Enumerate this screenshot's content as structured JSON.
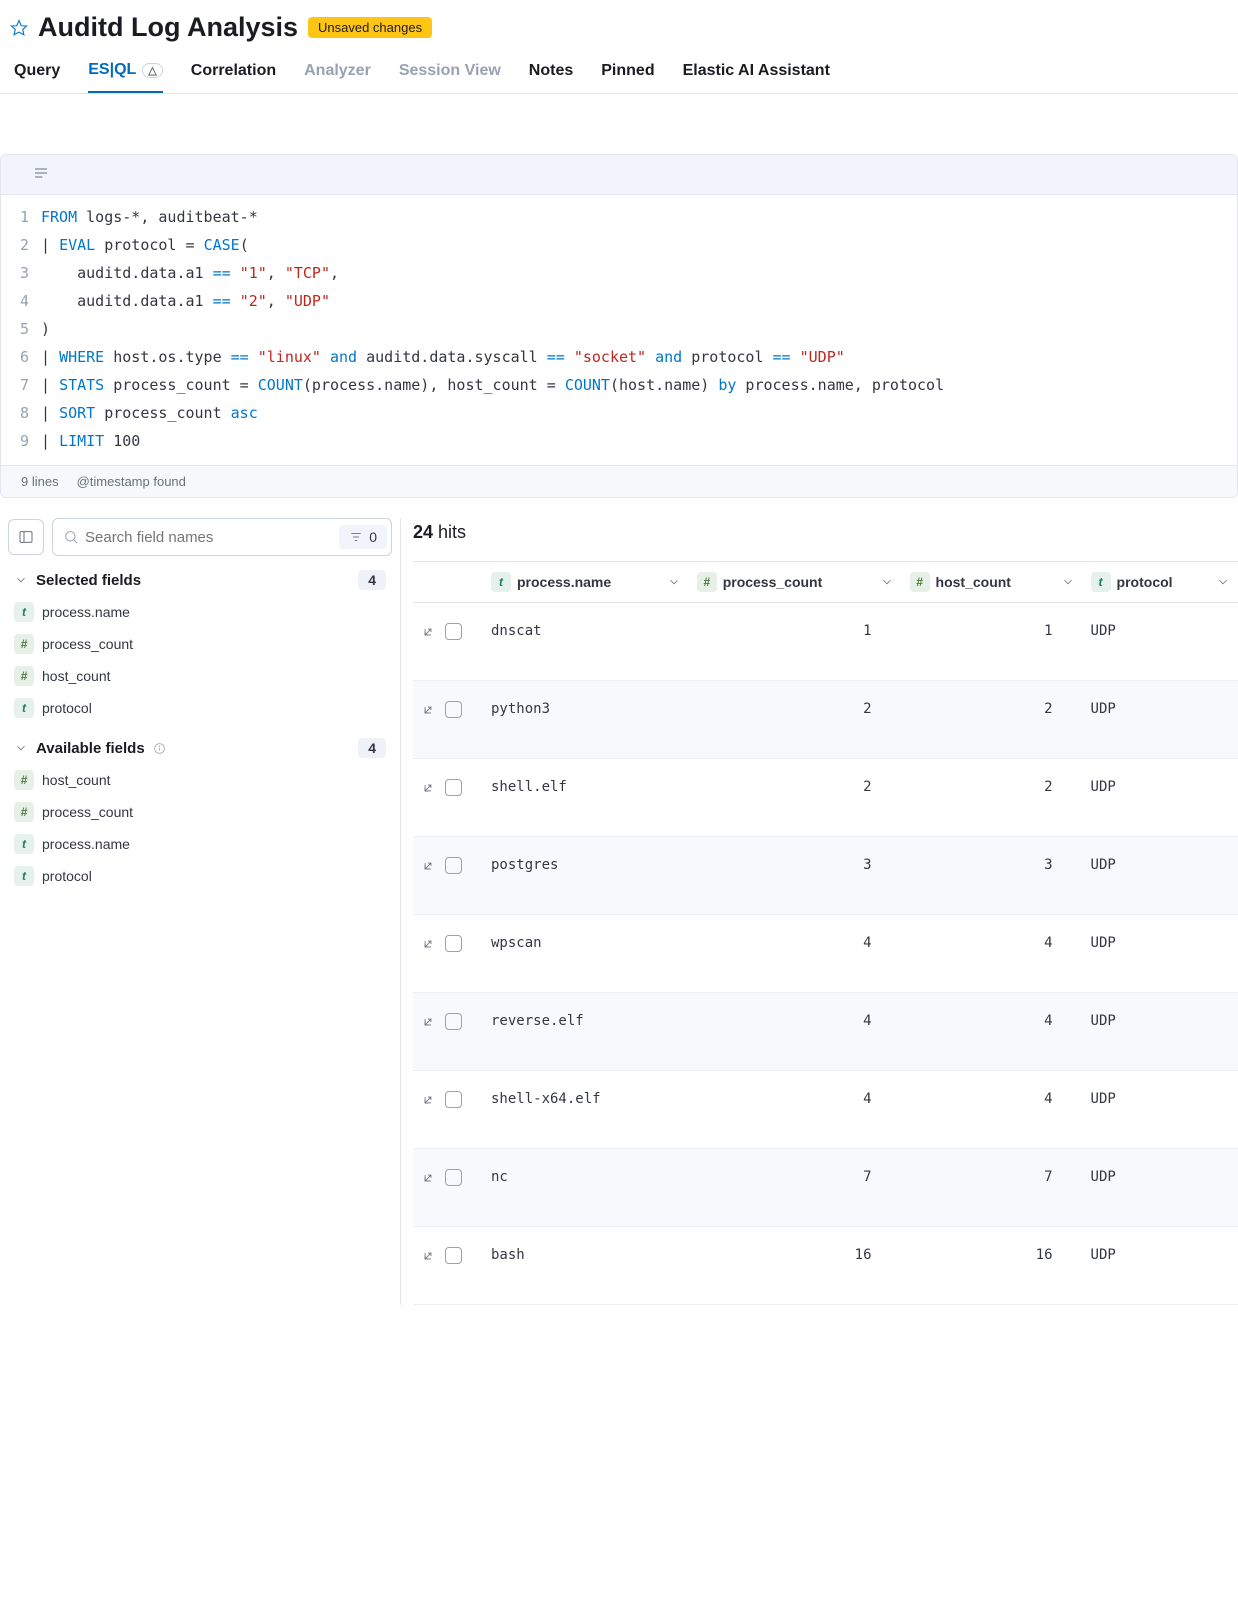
{
  "header": {
    "title": "Auditd Log Analysis",
    "badge": "Unsaved changes"
  },
  "tabs": [
    {
      "label": "Query",
      "state": "normal"
    },
    {
      "label": "ES|QL",
      "state": "active",
      "beta": "⚗"
    },
    {
      "label": "Correlation",
      "state": "normal"
    },
    {
      "label": "Analyzer",
      "state": "disabled"
    },
    {
      "label": "Session View",
      "state": "disabled"
    },
    {
      "label": "Notes",
      "state": "normal"
    },
    {
      "label": "Pinned",
      "state": "normal"
    },
    {
      "label": "Elastic AI Assistant",
      "state": "normal"
    }
  ],
  "query": {
    "lines": [
      "1",
      "2",
      "3",
      "4",
      "5",
      "6",
      "7",
      "8",
      "9"
    ],
    "footer_lines": "9 lines",
    "footer_ts": "@timestamp found"
  },
  "sidebar": {
    "search_placeholder": "Search field names",
    "search_count": "0",
    "selected_label": "Selected fields",
    "selected_count": "4",
    "selected": [
      {
        "type": "t",
        "name": "process.name"
      },
      {
        "type": "n",
        "name": "process_count"
      },
      {
        "type": "n",
        "name": "host_count"
      },
      {
        "type": "t",
        "name": "protocol"
      }
    ],
    "available_label": "Available fields",
    "available_count": "4",
    "available": [
      {
        "type": "n",
        "name": "host_count"
      },
      {
        "type": "n",
        "name": "process_count"
      },
      {
        "type": "t",
        "name": "process.name"
      },
      {
        "type": "t",
        "name": "protocol"
      }
    ]
  },
  "results": {
    "hits_count": "24",
    "hits_label": "hits",
    "columns": [
      {
        "type": "t",
        "name": "process.name"
      },
      {
        "type": "n",
        "name": "process_count"
      },
      {
        "type": "n",
        "name": "host_count"
      },
      {
        "type": "t",
        "name": "protocol"
      }
    ],
    "rows": [
      {
        "process": "dnscat",
        "pc": "1",
        "hc": "1",
        "proto": "UDP"
      },
      {
        "process": "python3",
        "pc": "2",
        "hc": "2",
        "proto": "UDP"
      },
      {
        "process": "shell.elf",
        "pc": "2",
        "hc": "2",
        "proto": "UDP"
      },
      {
        "process": "postgres",
        "pc": "3",
        "hc": "3",
        "proto": "UDP"
      },
      {
        "process": "wpscan",
        "pc": "4",
        "hc": "4",
        "proto": "UDP"
      },
      {
        "process": "reverse.elf",
        "pc": "4",
        "hc": "4",
        "proto": "UDP"
      },
      {
        "process": "shell-x64.elf",
        "pc": "4",
        "hc": "4",
        "proto": "UDP"
      },
      {
        "process": "nc",
        "pc": "7",
        "hc": "7",
        "proto": "UDP"
      },
      {
        "process": "bash",
        "pc": "16",
        "hc": "16",
        "proto": "UDP"
      }
    ]
  },
  "colors": {
    "accent": "#006bb8",
    "keyword": "#0077cc",
    "string": "#bd271e",
    "badge": "#fec514",
    "border": "#e3e6ef"
  }
}
